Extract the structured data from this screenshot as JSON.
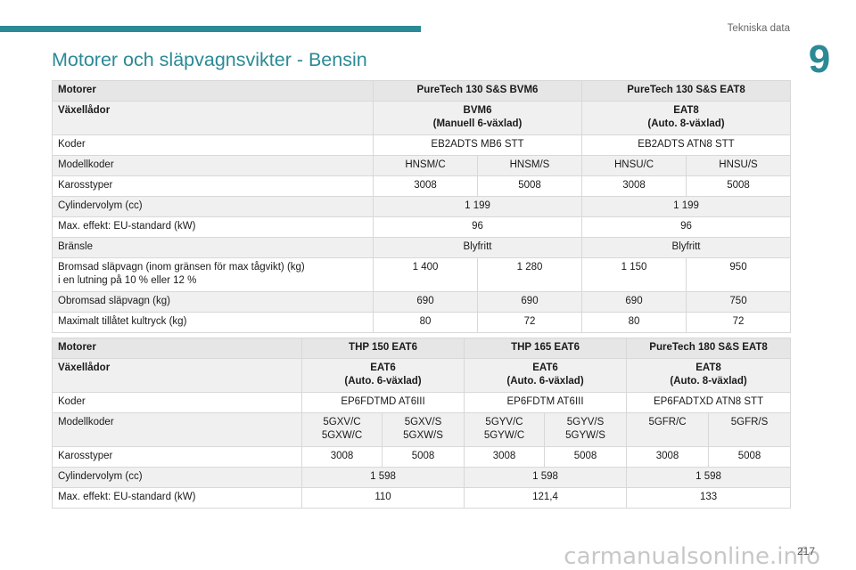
{
  "header": {
    "section_label": "Tekniska data",
    "chapter_number": "9"
  },
  "title": "Motorer och släpvagnsvikter - Bensin",
  "table1": {
    "header": [
      "Motorer",
      "PureTech 130 S&S BVM6",
      "PureTech 130 S&S EAT8"
    ],
    "gearbox": [
      "Växellådor",
      "BVM6\n(Manuell 6-växlad)",
      "EAT8\n(Auto. 8-växlad)"
    ],
    "code": [
      "Koder",
      "EB2ADTS MB6 STT",
      "EB2ADTS ATN8 STT"
    ],
    "model_codes": [
      "Modellkoder",
      "HNSM/C",
      "HNSM/S",
      "HNSU/C",
      "HNSU/S"
    ],
    "body": [
      "Karosstyper",
      "3008",
      "5008",
      "3008",
      "5008"
    ],
    "displacement": [
      "Cylindervolym (cc)",
      "1 199",
      "1 199"
    ],
    "power": [
      "Max. effekt: EU-standard (kW)",
      "96",
      "96"
    ],
    "fuel": [
      "Bränsle",
      "Blyfritt",
      "Blyfritt"
    ],
    "braked": [
      "Bromsad släpvagn (inom gränsen för max tågvikt) (kg)\ni en lutning på 10 % eller 12 %",
      "1 400",
      "1 280",
      "1 150",
      "950"
    ],
    "unbraked": [
      "Obromsad släpvagn (kg)",
      "690",
      "690",
      "690",
      "750"
    ],
    "nose": [
      "Maximalt tillåtet kultryck (kg)",
      "80",
      "72",
      "80",
      "72"
    ]
  },
  "table2": {
    "header": [
      "Motorer",
      "THP 150 EAT6",
      "THP 165 EAT6",
      "PureTech 180 S&S EAT8"
    ],
    "gearbox": [
      "Växellådor",
      "EAT6\n(Auto. 6-växlad)",
      "EAT6\n(Auto. 6-växlad)",
      "EAT8\n(Auto. 8-växlad)"
    ],
    "code": [
      "Koder",
      "EP6FDTMD AT6III",
      "EP6FDTM AT6III",
      "EP6FADTXD ATN8 STT"
    ],
    "model_codes": [
      "Modellkoder",
      "5GXV/C\n5GXW/C",
      "5GXV/S\n5GXW/S",
      "5GYV/C\n5GYW/C",
      "5GYV/S\n5GYW/S",
      "5GFR/C",
      "5GFR/S"
    ],
    "body": [
      "Karosstyper",
      "3008",
      "5008",
      "3008",
      "5008",
      "3008",
      "5008"
    ],
    "displacement": [
      "Cylindervolym (cc)",
      "1 598",
      "1 598",
      "1 598"
    ],
    "power": [
      "Max. effekt: EU-standard (kW)",
      "110",
      "121,4",
      "133"
    ]
  },
  "footer": {
    "page_number": "217",
    "watermark": "carmanualsonline.info"
  }
}
